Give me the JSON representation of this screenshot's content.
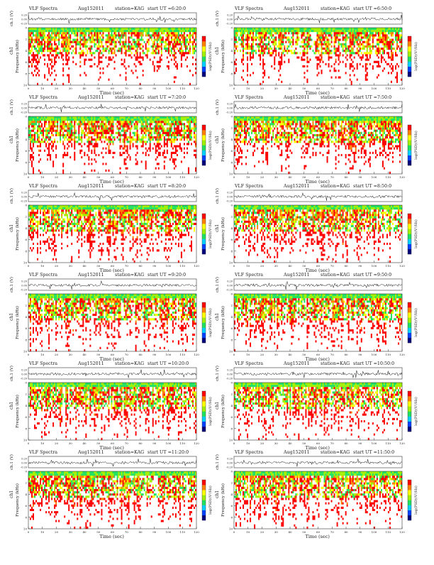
{
  "common": {
    "ch_label": "ch.1 (V)",
    "y_axis_label": "Frequency (kHz)",
    "channel_label": "ch1",
    "x_axis_label": "Time (sec)",
    "colorbar_label": "log(PSD)(V²/Hz)"
  },
  "panels": [
    {
      "title": "VLF Spectra",
      "date": "Aug152011",
      "station": "station=KAG",
      "start": "start UT =6:20:0"
    },
    {
      "title": "VLF Spectra",
      "date": "Aug152011",
      "station": "station=KAG",
      "start": "start UT =6:50:0"
    },
    {
      "title": "VLF Spectra",
      "date": "Aug152011",
      "station": "station=KAG",
      "start": "start UT =7:20:0"
    },
    {
      "title": "VLF Spectra",
      "date": "Aug152011",
      "station": "station=KAG",
      "start": "start UT =7:50:0"
    },
    {
      "title": "VLF Spectra",
      "date": "Aug152011",
      "station": "station=KAG",
      "start": "start UT =8:20:0"
    },
    {
      "title": "VLF Spectra",
      "date": "Aug152011",
      "station": "station=KAG",
      "start": "start UT =8:50:0"
    },
    {
      "title": "VLF Spectra",
      "date": "Aug152011",
      "station": "station=KAG",
      "start": "start UT =9:20:0"
    },
    {
      "title": "VLF Spectra",
      "date": "Aug152011",
      "station": "station=KAG",
      "start": "start UT =9:50:0"
    },
    {
      "title": "VLF Spectra",
      "date": "Aug152011",
      "station": "station=KAG",
      "start": "start UT =10:20:0"
    },
    {
      "title": "VLF Spectra",
      "date": "Aug152011",
      "station": "station=KAG",
      "start": "start UT =10:50:0"
    },
    {
      "title": "VLF Spectra",
      "date": "Aug152011",
      "station": "station=KAG",
      "start": "start UT =11:20:0"
    },
    {
      "title": "VLF Spectra",
      "date": "Aug152011",
      "station": "station=KAG",
      "start": "start UT =11:50:0"
    }
  ],
  "chart_data": {
    "type": "heatmap",
    "x_ticks": [
      0,
      10,
      20,
      30,
      40,
      50,
      60,
      70,
      80,
      90,
      100,
      110,
      120
    ],
    "xlim": [
      0,
      120
    ],
    "y_ticks": [
      0,
      2,
      4,
      6,
      8,
      10
    ],
    "ylim": [
      0,
      10
    ],
    "ch_ticks": [
      "0.20",
      "0.00",
      "-0.20"
    ],
    "colorbar_ticks": [],
    "colormap": [
      "#00007a",
      "#0040ff",
      "#00d0ff",
      "#20e060",
      "#a0f000",
      "#ffff00",
      "#ff8000",
      "#ff0000",
      "#ffffff"
    ]
  }
}
